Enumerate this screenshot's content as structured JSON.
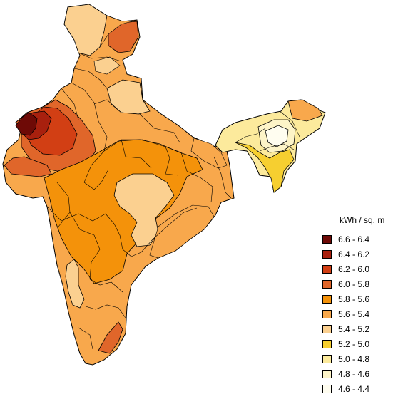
{
  "legend": {
    "title": "kWh / sq. m",
    "items": [
      {
        "label": "6.6 - 6.4",
        "color": "#6e0a06"
      },
      {
        "label": "6.4 - 6.2",
        "color": "#a8200e"
      },
      {
        "label": "6.2 - 6.0",
        "color": "#d23f14"
      },
      {
        "label": "6.0 - 5.8",
        "color": "#e0662a"
      },
      {
        "label": " 5.8 - 5.6",
        "color": "#f4920a"
      },
      {
        "label": "5.6 - 5.4",
        "color": "#f8a84c"
      },
      {
        "label": "5.4 - 5.2",
        "color": "#fbd090"
      },
      {
        "label": "5.2 - 5.0",
        "color": "#f6cf30"
      },
      {
        "label": "5.0 - 4.8",
        "color": "#fcea9c"
      },
      {
        "label": "4.8 - 4.6",
        "color": "#fdf4c8"
      },
      {
        "label": "4.6 - 4.4",
        "color": "#fffdf0"
      }
    ]
  }
}
